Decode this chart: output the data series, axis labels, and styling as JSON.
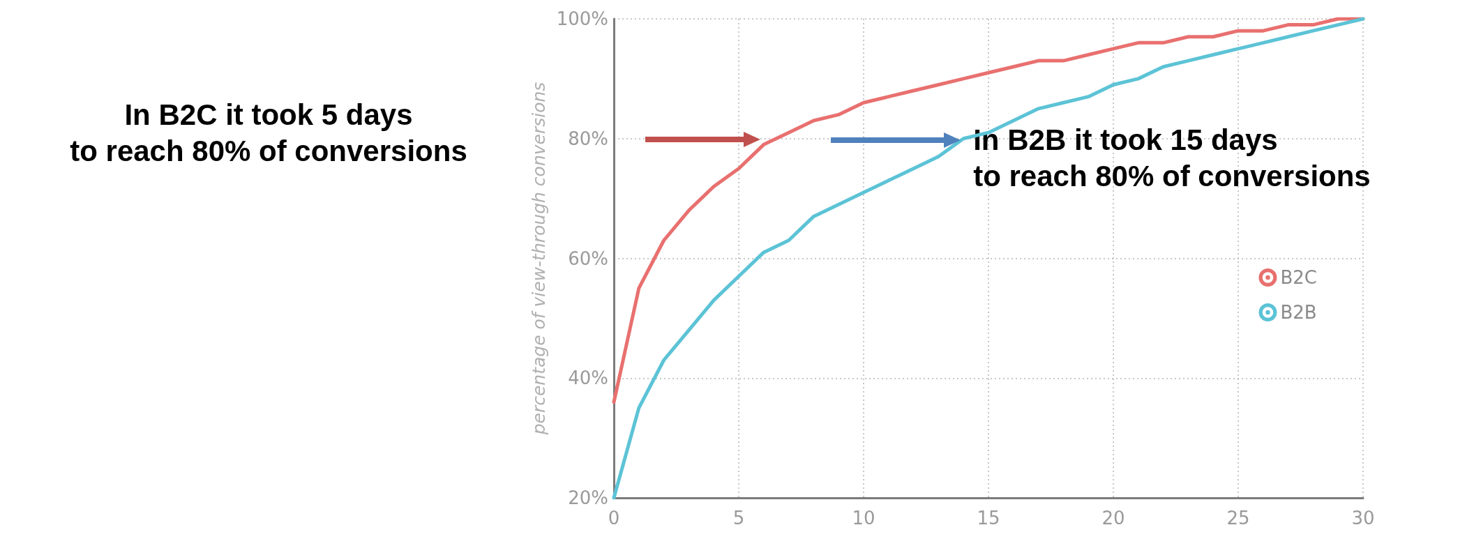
{
  "chart_data": {
    "type": "line",
    "ylabel": "percentage of view-through conversions",
    "x": [
      0,
      1,
      2,
      3,
      4,
      5,
      6,
      7,
      8,
      9,
      10,
      11,
      12,
      13,
      14,
      15,
      16,
      17,
      18,
      19,
      20,
      21,
      22,
      23,
      24,
      25,
      26,
      27,
      28,
      29,
      30
    ],
    "series": [
      {
        "name": "B2C",
        "color": "#e8706f",
        "values": [
          36,
          55,
          63,
          68,
          72,
          75,
          79,
          81,
          83,
          84,
          86,
          87,
          88,
          89,
          90,
          91,
          92,
          93,
          93,
          94,
          95,
          96,
          96,
          97,
          97,
          98,
          98,
          99,
          99,
          100,
          100
        ]
      },
      {
        "name": "B2B",
        "color": "#5cc3d6",
        "values": [
          20,
          35,
          43,
          48,
          53,
          57,
          61,
          63,
          67,
          69,
          71,
          73,
          75,
          77,
          80,
          81,
          83,
          85,
          86,
          87,
          89,
          90,
          92,
          93,
          94,
          95,
          96,
          97,
          98,
          99,
          100
        ]
      }
    ],
    "xlim": [
      0,
      30
    ],
    "xticks": [
      0,
      5,
      10,
      15,
      20,
      25,
      30
    ],
    "ylim": [
      20,
      100
    ],
    "yticks": [
      {
        "value": 20,
        "label": "20%"
      },
      {
        "value": 40,
        "label": "40%"
      },
      {
        "value": 60,
        "label": "60%"
      },
      {
        "value": 80,
        "label": "80%"
      },
      {
        "value": 100,
        "label": "100%"
      }
    ],
    "annotations": [
      "In B2C it took 5 days\nto reach 80% of conversions",
      {
        "text": "In B2B it took 15 days\nto reach 80% of conversions",
        "x": 14,
        "y": 80
      }
    ],
    "grid": true,
    "legend": "right",
    "marker": "none",
    "line_style": "solid"
  }
}
